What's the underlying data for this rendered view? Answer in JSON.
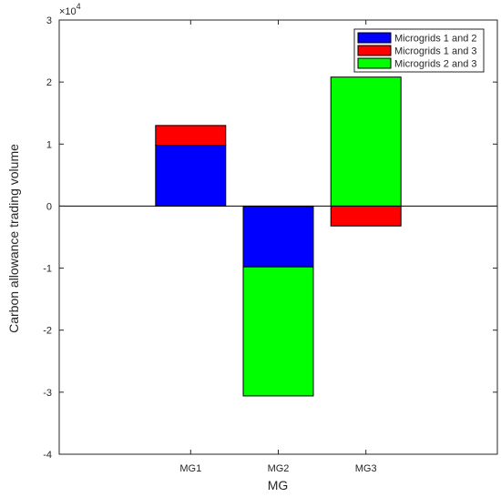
{
  "chart_data": {
    "type": "bar",
    "stacked": true,
    "xlabel": "MG",
    "ylabel": "Carbon allowance trading volume",
    "y_exponent_base": "×10",
    "y_exponent_power": "4",
    "ylim": [
      -4,
      3
    ],
    "yticks": [
      -4,
      -3,
      -2,
      -1,
      0,
      1,
      2,
      3
    ],
    "ytick_labels": [
      "-4",
      "-3",
      "-2",
      "-1",
      "0",
      "1",
      "2",
      "3"
    ],
    "categories": [
      "MG1",
      "MG2",
      "MG3"
    ],
    "series": [
      {
        "name": "Microgrids 1 and 2",
        "color": "#0000ff",
        "values": [
          0.98,
          -0.98,
          0
        ]
      },
      {
        "name": "Microgrids 1 and 3",
        "color": "#ff0000",
        "values": [
          0.32,
          0,
          -0.32
        ]
      },
      {
        "name": "Microgrids 2 and 3",
        "color": "#00ff00",
        "values": [
          0,
          -2.08,
          2.08
        ]
      }
    ],
    "legend_position": "top-right",
    "grid": false
  }
}
